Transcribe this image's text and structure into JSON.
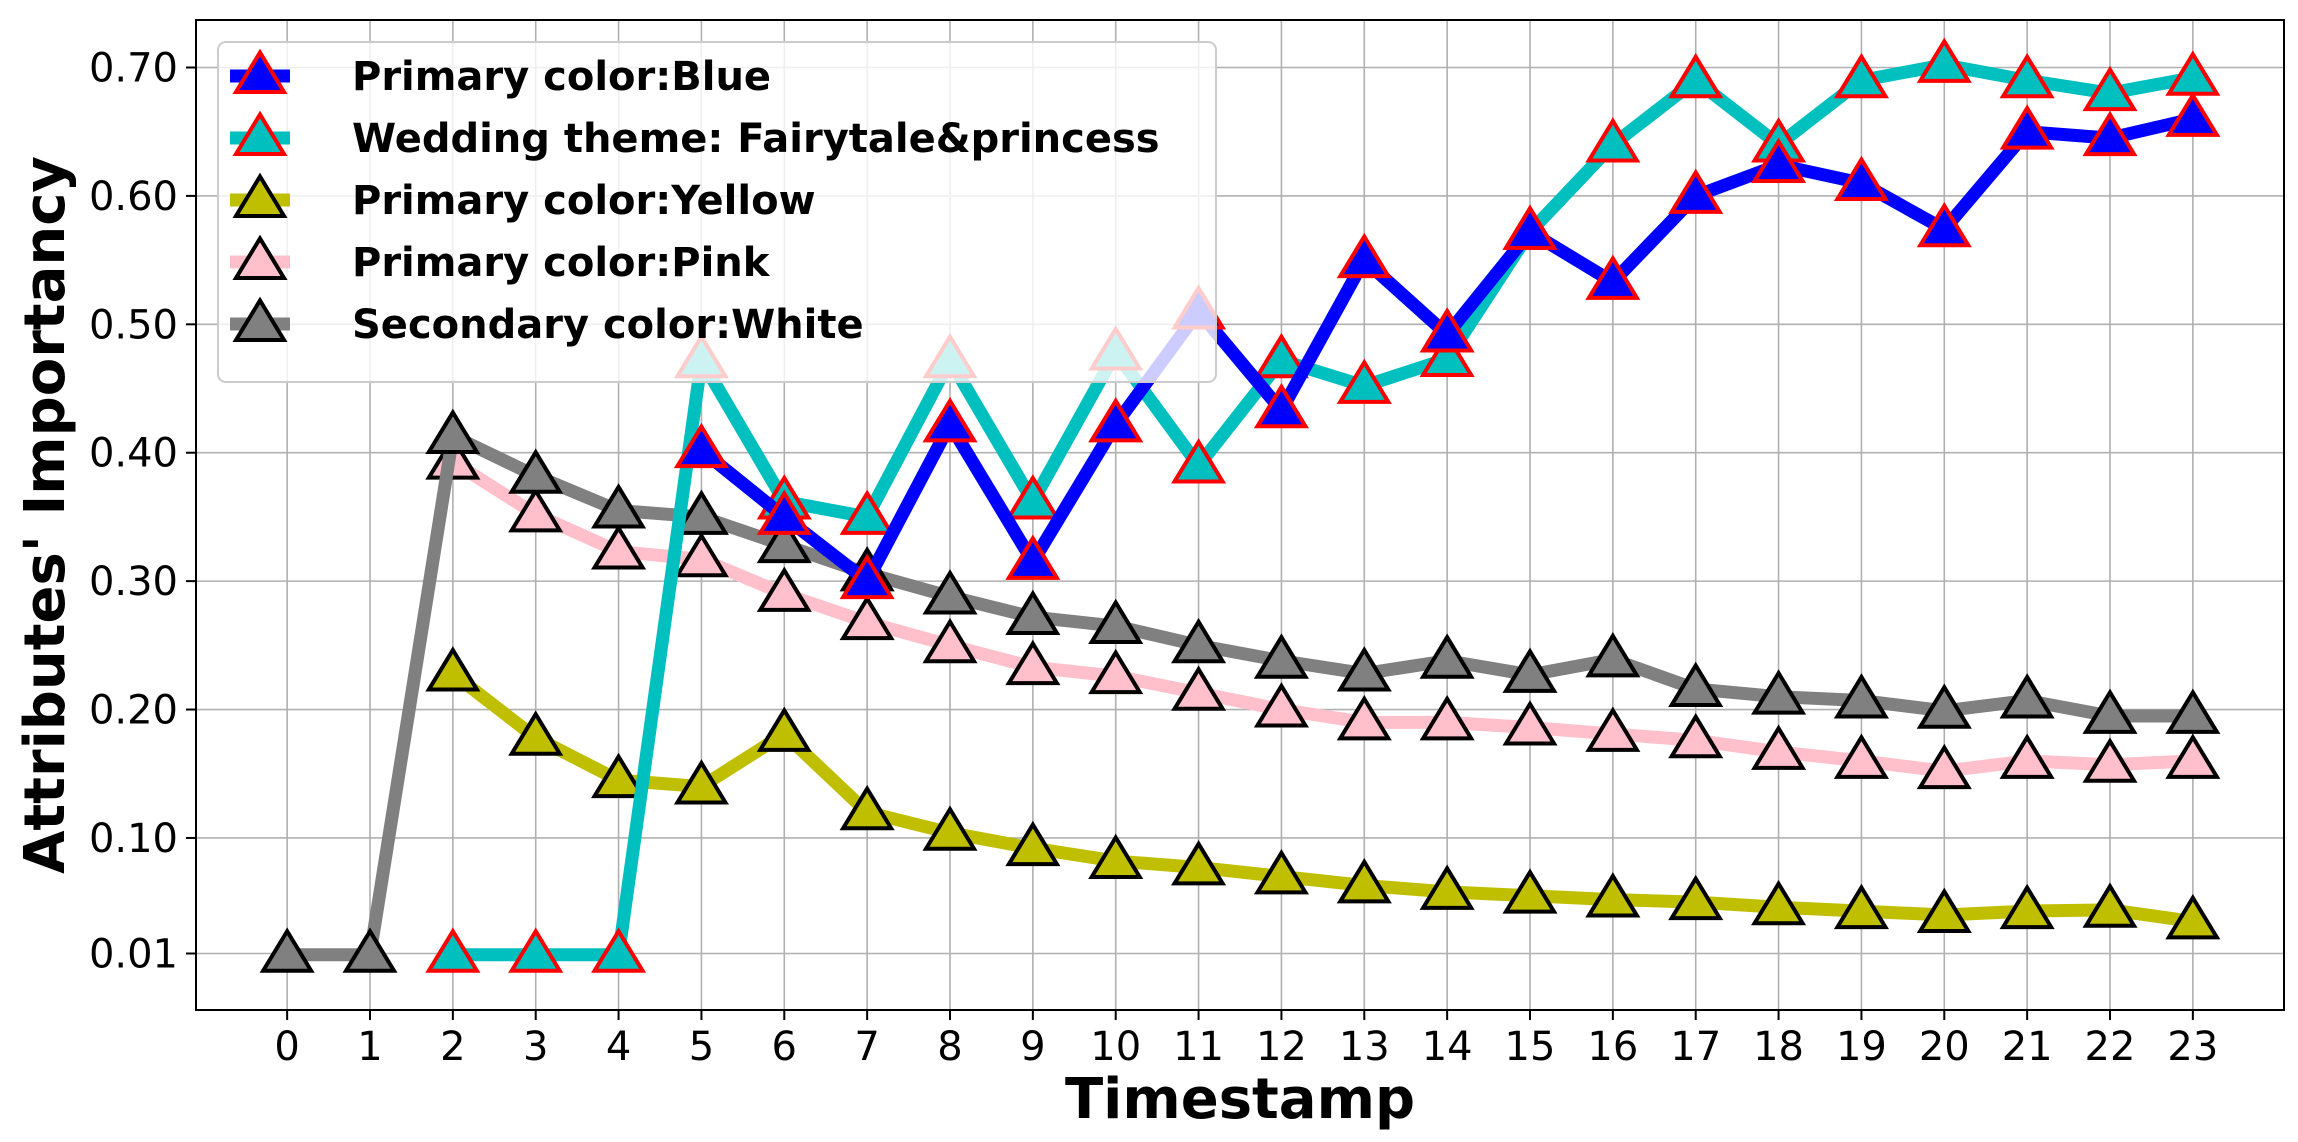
{
  "chart_data": {
    "type": "line",
    "title": "",
    "xlabel": "Timestamp",
    "ylabel": "Attributes' Importancy",
    "x": [
      0,
      1,
      2,
      3,
      4,
      5,
      6,
      7,
      8,
      9,
      10,
      11,
      12,
      13,
      14,
      15,
      16,
      17,
      18,
      19,
      20,
      21,
      22,
      23
    ],
    "x_tick_labels": [
      "0",
      "1",
      "2",
      "3",
      "4",
      "5",
      "6",
      "7",
      "8",
      "9",
      "10",
      "11",
      "12",
      "13",
      "14",
      "15",
      "16",
      "17",
      "18",
      "19",
      "20",
      "21",
      "22",
      "23"
    ],
    "y_ticks": [
      0.01,
      0.1,
      0.2,
      0.3,
      0.4,
      0.5,
      0.6,
      0.7
    ],
    "y_tick_labels": [
      "0.01",
      "0.10",
      "0.20",
      "0.30",
      "0.40",
      "0.50",
      "0.60",
      "0.70"
    ],
    "xlim": [
      -1.1,
      24.1
    ],
    "ylim": [
      -0.034,
      0.737
    ],
    "grid": true,
    "legend_position": "top-left",
    "series": [
      {
        "name": "Primary color:Blue",
        "line_color": "#0000ff",
        "marker_fill": "#0000ff",
        "marker_edge": "#ff0000",
        "values": [
          null,
          null,
          null,
          null,
          null,
          0.402,
          0.35,
          0.3,
          0.422,
          0.315,
          0.422,
          0.51,
          0.433,
          0.55,
          0.492,
          0.572,
          0.533,
          0.6,
          0.624,
          0.61,
          0.574,
          0.65,
          0.645,
          0.66
        ]
      },
      {
        "name": "Wedding theme: Fairytale&princess",
        "line_color": "#00bfbf",
        "marker_fill": "#00bfbf",
        "marker_edge": "#ff0000",
        "values": [
          null,
          null,
          0.009,
          0.009,
          0.009,
          0.472,
          0.362,
          0.35,
          0.472,
          0.362,
          0.478,
          0.39,
          0.472,
          0.452,
          0.473,
          0.572,
          0.64,
          0.69,
          0.64,
          0.69,
          0.702,
          0.69,
          0.68,
          0.692
        ]
      },
      {
        "name": "Primary color:Yellow",
        "line_color": "#bfbf00",
        "marker_fill": "#bfbf00",
        "marker_edge": "#000000",
        "values": [
          null,
          null,
          0.228,
          0.178,
          0.145,
          0.14,
          0.181,
          0.12,
          0.104,
          0.092,
          0.082,
          0.077,
          0.07,
          0.063,
          0.058,
          0.055,
          0.052,
          0.05,
          0.046,
          0.043,
          0.04,
          0.043,
          0.044,
          0.035
        ]
      },
      {
        "name": "Primary color:Pink",
        "line_color": "#ffc0cb",
        "marker_fill": "#ffc0cb",
        "marker_edge": "#000000",
        "values": [
          null,
          null,
          0.393,
          0.352,
          0.323,
          0.317,
          0.29,
          0.268,
          0.25,
          0.233,
          0.226,
          0.213,
          0.2,
          0.19,
          0.19,
          0.186,
          0.181,
          0.176,
          0.167,
          0.16,
          0.152,
          0.16,
          0.157,
          0.16
        ]
      },
      {
        "name": "Secondary color:White",
        "line_color": "#808080",
        "marker_fill": "#808080",
        "marker_edge": "#000000",
        "values": [
          0.009,
          0.009,
          0.413,
          0.382,
          0.355,
          0.35,
          0.328,
          0.306,
          0.288,
          0.272,
          0.265,
          0.25,
          0.238,
          0.228,
          0.238,
          0.227,
          0.239,
          0.216,
          0.21,
          0.207,
          0.199,
          0.207,
          0.195,
          0.195
        ]
      }
    ]
  }
}
